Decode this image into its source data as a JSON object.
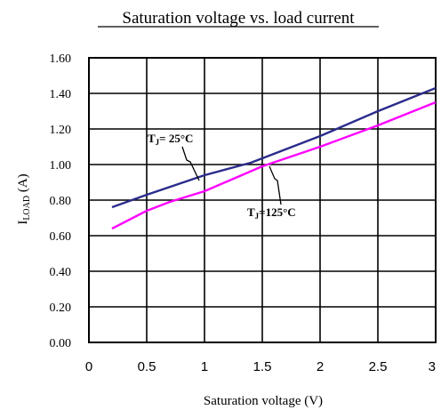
{
  "chart_data": {
    "type": "line",
    "title": "Saturation voltage vs. load current",
    "xlabel": "Saturation voltage (V)",
    "ylabel": {
      "main": "I",
      "sub": "LOAD",
      "rest": " (A)"
    },
    "xlim": [
      0,
      3
    ],
    "ylim": [
      0,
      1.6
    ],
    "x_ticks": [
      0,
      0.5,
      1,
      1.5,
      2,
      2.5,
      3
    ],
    "x_tick_labels": [
      "0",
      "0.5",
      "1",
      "1.5",
      "2",
      "2.5",
      "3"
    ],
    "y_ticks": [
      0,
      0.2,
      0.4,
      0.6,
      0.8,
      1.0,
      1.2,
      1.4,
      1.6
    ],
    "y_tick_labels": [
      "0.00",
      "0.20",
      "0.40",
      "0.60",
      "0.80",
      "1.00",
      "1.20",
      "1.40",
      "1.60"
    ],
    "grid": true,
    "series": [
      {
        "name": "TJ= 25°C",
        "color": "#2b2b8c",
        "x": [
          0.2,
          0.5,
          1.0,
          1.4,
          1.6,
          2.0,
          2.5,
          3.0
        ],
        "y": [
          0.76,
          0.83,
          0.94,
          1.01,
          1.06,
          1.16,
          1.3,
          1.43
        ]
      },
      {
        "name": "TJ=125°C",
        "color": "#ff00ff",
        "x": [
          0.2,
          0.5,
          0.7,
          1.0,
          1.5,
          2.0,
          2.5,
          3.0
        ],
        "y": [
          0.64,
          0.74,
          0.79,
          0.85,
          0.99,
          1.1,
          1.22,
          1.35
        ]
      }
    ],
    "annotations": [
      {
        "series": 0,
        "main": "T",
        "sub": "J",
        "rest": "= 25°C"
      },
      {
        "series": 1,
        "main": "T",
        "sub": "J",
        "rest": "=125°C"
      }
    ]
  }
}
